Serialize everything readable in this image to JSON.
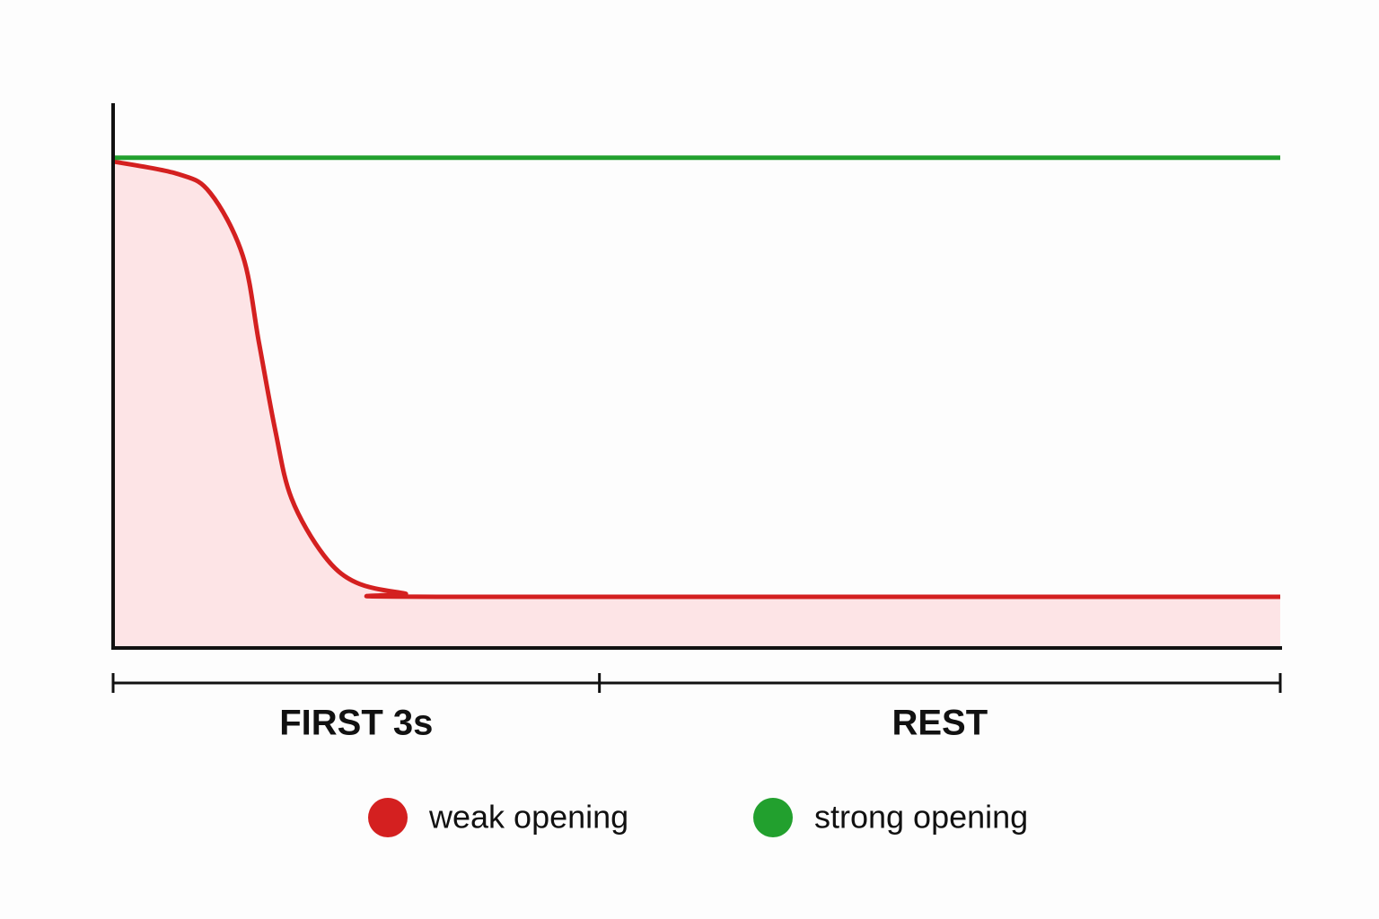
{
  "chart_data": {
    "type": "line",
    "xlim": [
      0,
      7.2
    ],
    "ylim": [
      0,
      100
    ],
    "series": [
      {
        "name": "weak opening",
        "color": "#d42020",
        "fill": "#fde4e6",
        "x": [
          0,
          0.4,
          0.6,
          0.8,
          0.9,
          1.0,
          1.1,
          1.3,
          1.5,
          1.8,
          2.0,
          7.2
        ],
        "values": [
          89.3,
          87,
          83.5,
          72,
          56,
          40,
          27.5,
          17,
          12,
          10,
          9.4,
          9.4
        ]
      },
      {
        "name": "strong opening",
        "color": "#22a02e",
        "x": [
          0,
          7.2
        ],
        "values": [
          90,
          90
        ]
      }
    ],
    "segments": [
      {
        "label": "FIRST 3s",
        "start": 0,
        "end": 3
      },
      {
        "label": "REST",
        "start": 3,
        "end": 7.2
      }
    ]
  }
}
